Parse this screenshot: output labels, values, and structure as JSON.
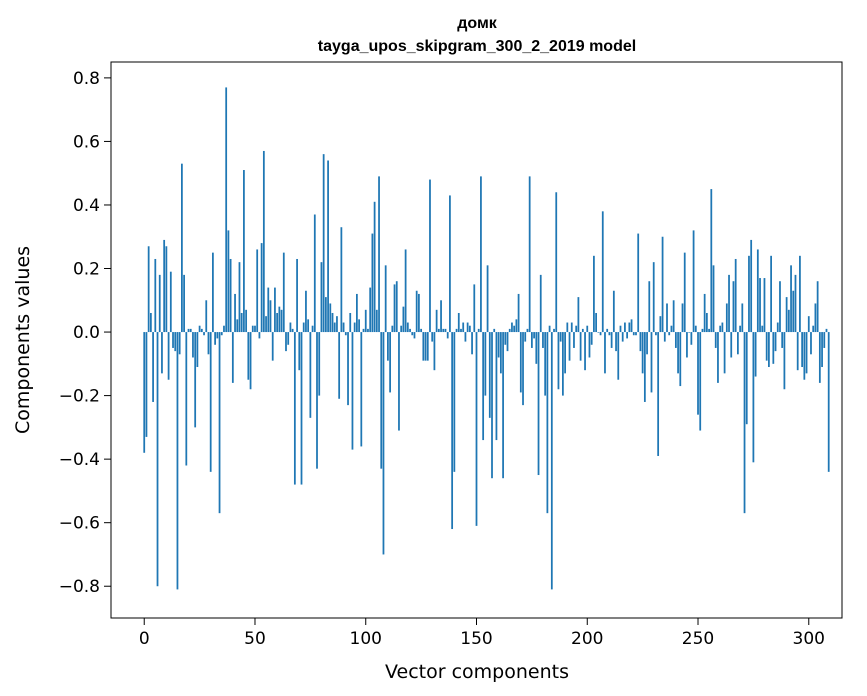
{
  "chart_data": {
    "type": "bar",
    "title": "домк",
    "subtitle": "tayga_upos_skipgram_300_2_2019 model",
    "xlabel": "Vector components",
    "ylabel": "Components values",
    "xlim": [
      -15,
      315
    ],
    "ylim": [
      -0.9,
      0.85
    ],
    "xticks": [
      0,
      50,
      100,
      150,
      200,
      250,
      300
    ],
    "xtick_labels": [
      "0",
      "50",
      "100",
      "150",
      "200",
      "250",
      "300"
    ],
    "yticks": [
      -0.8,
      -0.6,
      -0.4,
      -0.2,
      0.0,
      0.2,
      0.4,
      0.6,
      0.8
    ],
    "ytick_labels": [
      "−0.8",
      "−0.6",
      "−0.4",
      "−0.2",
      "0.0",
      "0.2",
      "0.4",
      "0.6",
      "0.8"
    ],
    "bar_color": "#1f77b4",
    "grid": false,
    "values": [
      -0.38,
      -0.33,
      0.27,
      0.06,
      -0.22,
      0.23,
      -0.8,
      0.18,
      -0.13,
      0.29,
      0.27,
      -0.15,
      0.19,
      -0.05,
      -0.06,
      -0.81,
      -0.07,
      0.53,
      0.18,
      -0.42,
      0.01,
      0.01,
      -0.08,
      -0.3,
      -0.11,
      0.02,
      0.01,
      -0.01,
      0.1,
      -0.07,
      -0.44,
      0.25,
      -0.04,
      -0.02,
      -0.57,
      -0.01,
      0.02,
      0.77,
      0.32,
      0.23,
      -0.16,
      0.12,
      0.04,
      0.22,
      0.06,
      0.51,
      0.07,
      -0.15,
      -0.18,
      0.02,
      0.02,
      0.26,
      -0.02,
      0.28,
      0.57,
      0.05,
      0.14,
      0.1,
      -0.09,
      0.14,
      0.06,
      0.08,
      0.07,
      0.25,
      -0.06,
      -0.04,
      0.03,
      0.01,
      -0.48,
      0.23,
      -0.12,
      -0.48,
      0.03,
      0.13,
      0.04,
      -0.27,
      0.02,
      0.37,
      -0.43,
      -0.2,
      0.22,
      0.56,
      0.11,
      0.54,
      0.09,
      0.06,
      0.03,
      0.05,
      -0.21,
      0.33,
      0.03,
      -0.01,
      -0.23,
      0.06,
      -0.37,
      0.03,
      0.12,
      0.04,
      -0.36,
      0.01,
      0.07,
      0.01,
      0.14,
      0.31,
      0.41,
      0.07,
      0.49,
      -0.43,
      -0.7,
      0.21,
      -0.09,
      -0.19,
      0.02,
      0.15,
      0.16,
      -0.31,
      0.02,
      0.08,
      0.26,
      0.03,
      0.01,
      -0.01,
      -0.02,
      0.13,
      0.12,
      0.01,
      -0.09,
      -0.09,
      -0.09,
      0.48,
      -0.03,
      -0.12,
      0.07,
      0.01,
      0.1,
      0.01,
      0.01,
      -0.02,
      0.43,
      -0.62,
      -0.44,
      0.01,
      0.06,
      0.01,
      0.03,
      -0.03,
      0.03,
      0.02,
      -0.07,
      0.15,
      -0.61,
      0.01,
      0.49,
      -0.34,
      -0.2,
      0.21,
      -0.27,
      -0.46,
      0.01,
      -0.34,
      -0.08,
      -0.13,
      -0.46,
      -0.04,
      -0.06,
      0.01,
      0.03,
      0.02,
      0.04,
      0.12,
      -0.19,
      -0.23,
      -0.03,
      0.01,
      0.49,
      -0.05,
      -0.02,
      -0.1,
      -0.45,
      0.18,
      -0.05,
      -0.2,
      -0.57,
      0.02,
      -0.81,
      0.01,
      0.44,
      -0.18,
      -0.03,
      -0.2,
      -0.13,
      0.03,
      -0.09,
      0.03,
      -0.05,
      0.02,
      0.11,
      -0.09,
      0.01,
      -0.12,
      0.02,
      -0.08,
      -0.04,
      0.24,
      0.06,
      0.0,
      -0.01,
      0.38,
      -0.13,
      0.01,
      -0.01,
      -0.05,
      0.13,
      -0.06,
      -0.15,
      0.02,
      -0.03,
      0.03,
      -0.02,
      0.03,
      0.04,
      -0.01,
      -0.01,
      0.31,
      -0.06,
      -0.13,
      -0.22,
      -0.07,
      0.16,
      -0.19,
      0.22,
      -0.01,
      -0.39,
      0.05,
      0.3,
      -0.03,
      0.09,
      -0.01,
      0.02,
      0.1,
      -0.05,
      -0.13,
      -0.17,
      0.09,
      0.25,
      -0.08,
      0.0,
      -0.04,
      0.32,
      0.02,
      -0.26,
      -0.31,
      0.01,
      0.12,
      0.06,
      0.01,
      0.45,
      0.21,
      -0.05,
      -0.16,
      0.02,
      0.03,
      -0.13,
      0.09,
      0.18,
      -0.08,
      0.16,
      0.23,
      -0.07,
      0.02,
      0.09,
      -0.57,
      -0.29,
      0.24,
      0.29,
      -0.41,
      -0.14,
      0.26,
      0.17,
      0.02,
      0.17,
      -0.09,
      -0.11,
      0.24,
      -0.1,
      -0.06,
      0.03,
      0.16,
      -0.05,
      -0.18,
      0.11,
      0.07,
      0.21,
      0.13,
      0.18,
      -0.12,
      0.24,
      -0.11,
      -0.15,
      -0.13,
      0.05,
      -0.07,
      0.02,
      0.09,
      0.16,
      -0.16,
      -0.11,
      -0.05,
      0.01,
      -0.44
    ]
  }
}
